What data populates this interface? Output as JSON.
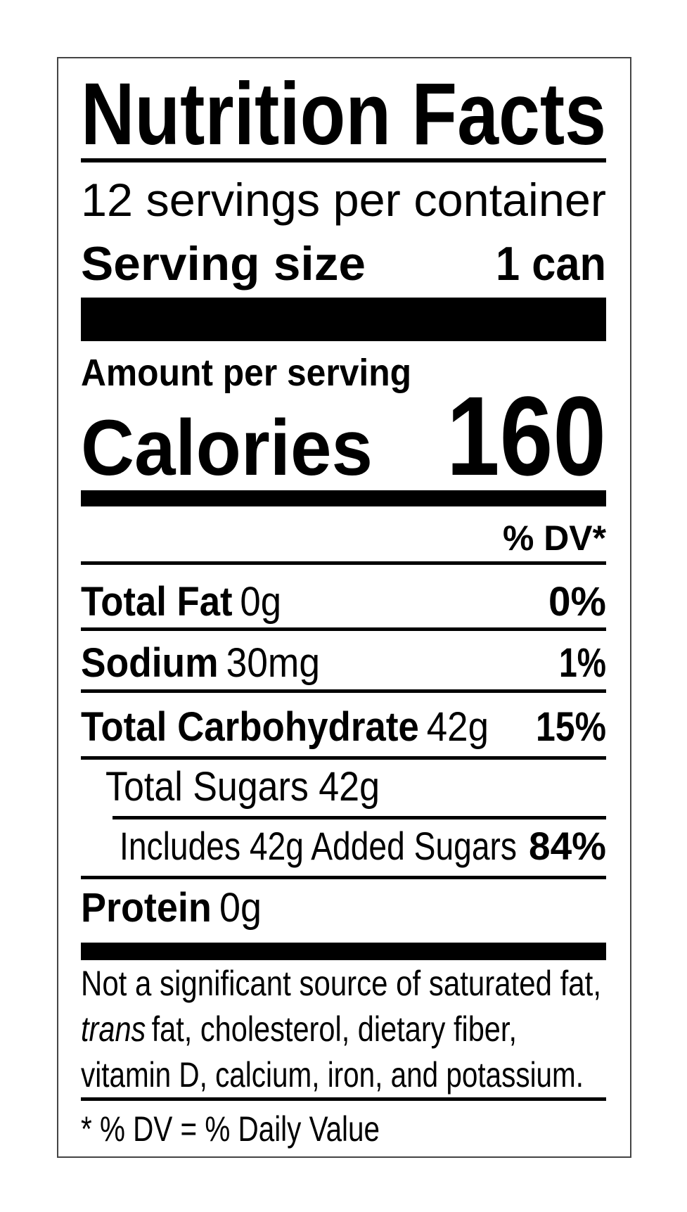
{
  "title": "Nutrition Facts",
  "servings": "12 servings per container",
  "serving_size": {
    "label": "Serving size",
    "value": "1 can"
  },
  "amount_per_serving": "Amount per serving",
  "calories": {
    "label": "Calories",
    "value": 160
  },
  "dv_header": "% DV*",
  "nutrients": [
    {
      "name": "Total Fat",
      "amount": "0g",
      "dv": "0%"
    },
    {
      "name": "Sodium",
      "amount": "30mg",
      "dv": "1%"
    },
    {
      "name": "Total Carbohydrate",
      "amount": "42g",
      "dv": "15%"
    },
    {
      "text": "Total Sugars 42g"
    },
    {
      "text": "Includes 42g Added Sugars",
      "dv": "84%"
    },
    {
      "name": "Protein",
      "amount": "0g"
    }
  ],
  "footnote": {
    "line1": "Not a significant source of saturated fat,",
    "line2_italic": "trans",
    "line2": "fat, cholesterol, dietary fiber,",
    "line3": "vitamin D, calcium, iron, and potassium."
  },
  "dv_note": "* % DV = % Daily Value"
}
